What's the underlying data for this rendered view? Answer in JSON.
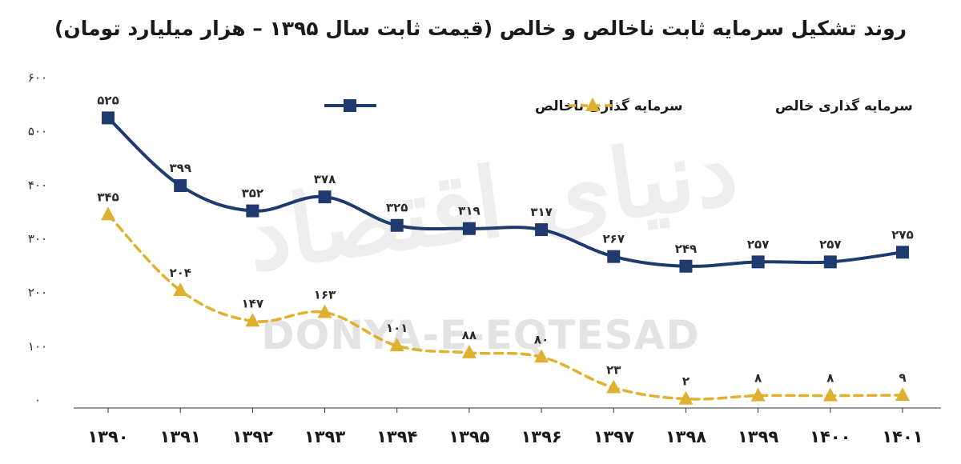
{
  "chart_data": {
    "type": "line",
    "title": "روند تشکیل سرمایه ثابت ناخالص و خالص (قیمت ثابت سال ۱۳۹۵ – هزار میلیارد تومان)",
    "xlabel": "",
    "ylabel": "",
    "categories": [
      "۱۳۹۰",
      "۱۳۹۱",
      "۱۳۹۲",
      "۱۳۹۳",
      "۱۳۹۴",
      "۱۳۹۵",
      "۱۳۹۶",
      "۱۳۹۷",
      "۱۳۹۸",
      "۱۳۹۹",
      "۱۴۰۰",
      "۱۴۰۱"
    ],
    "ylim": [
      0,
      600
    ],
    "yticks": [
      0,
      100,
      200,
      300,
      400,
      500,
      600
    ],
    "ytick_labels": [
      "۰",
      "۱۰۰",
      "۲۰۰",
      "۳۰۰",
      "۴۰۰",
      "۵۰۰",
      "۶۰۰"
    ],
    "grid": false,
    "legend_position": "top-right",
    "series": [
      {
        "name": "سرمایه گذاری ناخالص",
        "color": "#1f3a6e",
        "style": "solid",
        "marker": "square",
        "values": [
          525,
          399,
          352,
          378,
          325,
          319,
          317,
          267,
          249,
          257,
          257,
          275
        ],
        "labels": [
          "۵۲۵",
          "۳۹۹",
          "۳۵۲",
          "۳۷۸",
          "۳۲۵",
          "۳۱۹",
          "۳۱۷",
          "۲۶۷",
          "۲۴۹",
          "۲۵۷",
          "۲۵۷",
          "۲۷۵"
        ]
      },
      {
        "name": "سرمایه گذاری خالص",
        "color": "#e0b030",
        "style": "dashed",
        "marker": "triangle",
        "values": [
          345,
          204,
          147,
          163,
          101,
          88,
          80,
          23,
          2,
          8,
          8,
          9
        ],
        "labels": [
          "۳۴۵",
          "۲۰۴",
          "۱۴۷",
          "۱۶۳",
          "۱۰۱",
          "۸۸",
          "۸۰",
          "۲۳",
          "۲",
          "۸",
          "۸",
          "۹"
        ]
      }
    ],
    "watermark": {
      "latin": "DONYA-E-EQTESAD",
      "persian": "دنیای اقتصاد"
    }
  }
}
